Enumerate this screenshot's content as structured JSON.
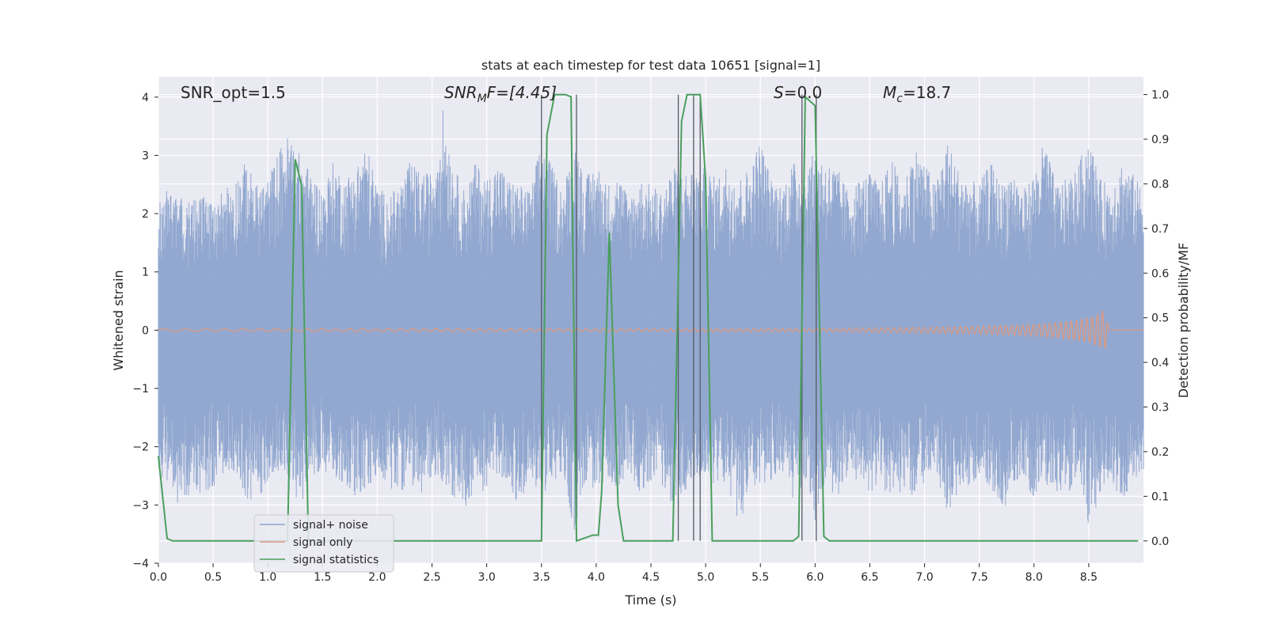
{
  "chart_data": {
    "type": "line",
    "title": "stats at each timestep for test data 10651 [signal=1]",
    "xlabel": "Time (s)",
    "ylabel": "Whitened strain",
    "y2label": "Detection probability/MF",
    "xlim": [
      0,
      9
    ],
    "ylim": [
      -4,
      4.35
    ],
    "y2lim": [
      -0.05,
      1.04
    ],
    "x_ticks": [
      0.0,
      0.5,
      1.0,
      1.5,
      2.0,
      2.5,
      3.0,
      3.5,
      4.0,
      4.5,
      5.0,
      5.5,
      6.0,
      6.5,
      7.0,
      7.5,
      8.0,
      8.5
    ],
    "x_tick_labels": [
      "0.0",
      "0.5",
      "1.0",
      "1.5",
      "2.0",
      "2.5",
      "3.0",
      "3.5",
      "4.0",
      "4.5",
      "5.0",
      "5.5",
      "6.0",
      "6.5",
      "7.0",
      "7.5",
      "8.0",
      "8.5"
    ],
    "y_ticks": [
      -4,
      -3,
      -2,
      -1,
      0,
      1,
      2,
      3,
      4
    ],
    "y_tick_labels": [
      "−4",
      "−3",
      "−2",
      "−1",
      "0",
      "1",
      "2",
      "3",
      "4"
    ],
    "y2_ticks": [
      0.0,
      0.1,
      0.2,
      0.3,
      0.4,
      0.5,
      0.6,
      0.7,
      0.8,
      0.9,
      1.0
    ],
    "y2_tick_labels": [
      "0.0",
      "0.1",
      "0.2",
      "0.3",
      "0.4",
      "0.5",
      "0.6",
      "0.7",
      "0.8",
      "0.9",
      "1.0"
    ],
    "grid": true,
    "legend_position": "lower-left",
    "annotations": {
      "snr_opt": "SNR_opt=1.5",
      "snr_mf_base": "SNR",
      "snr_mf_sub": "M",
      "snr_mf_rest": "F=[4.45]",
      "s_italic": "S",
      "s_rest": "=0.0",
      "mc_base": "M",
      "mc_sub": "c",
      "mc_rest": "=18.7"
    },
    "noise_envelope": {
      "x": [
        0.0,
        0.1,
        0.2,
        0.3,
        0.4,
        0.5,
        0.6,
        0.7,
        0.8,
        0.9,
        1.0,
        1.1,
        1.2,
        1.3,
        1.4,
        1.5,
        1.6,
        1.7,
        1.8,
        1.9,
        2.0,
        2.1,
        2.2,
        2.3,
        2.4,
        2.5,
        2.6,
        2.7,
        2.8,
        2.9,
        3.0,
        3.1,
        3.2,
        3.3,
        3.4,
        3.5,
        3.6,
        3.7,
        3.8,
        3.9,
        4.0,
        4.1,
        4.2,
        4.3,
        4.4,
        4.5,
        4.6,
        4.7,
        4.8,
        4.9,
        5.0,
        5.1,
        5.2,
        5.3,
        5.4,
        5.5,
        5.6,
        5.7,
        5.8,
        5.9,
        6.0,
        6.1,
        6.2,
        6.3,
        6.4,
        6.5,
        6.6,
        6.7,
        6.8,
        6.9,
        7.0,
        7.1,
        7.2,
        7.3,
        7.4,
        7.5,
        7.6,
        7.7,
        7.8,
        7.9,
        8.0,
        8.1,
        8.2,
        8.3,
        8.4,
        8.5,
        8.6,
        8.7,
        8.8,
        8.9,
        9.0
      ],
      "upper": [
        2.2,
        2.5,
        2.3,
        2.2,
        2.4,
        2.1,
        2.5,
        2.6,
        2.9,
        2.5,
        2.6,
        3.1,
        3.4,
        3.0,
        2.7,
        2.4,
        2.9,
        2.6,
        2.8,
        3.2,
        2.5,
        2.3,
        2.5,
        2.9,
        2.7,
        2.7,
        3.8,
        2.8,
        2.4,
        2.9,
        2.6,
        2.9,
        2.6,
        2.5,
        2.4,
        3.3,
        2.8,
        2.4,
        3.3,
        2.6,
        2.9,
        2.5,
        2.7,
        2.3,
        2.6,
        2.5,
        2.4,
        2.8,
        2.7,
        2.8,
        2.8,
        2.6,
        2.9,
        2.6,
        2.8,
        3.3,
        2.6,
        2.5,
        2.9,
        2.7,
        3.1,
        2.9,
        2.8,
        2.4,
        2.6,
        2.7,
        2.5,
        3.0,
        2.4,
        3.2,
        2.9,
        2.5,
        3.3,
        2.8,
        2.6,
        2.5,
        2.9,
        2.5,
        2.8,
        2.4,
        2.7,
        3.3,
        2.5,
        2.6,
        2.8,
        3.4,
        2.6,
        2.5,
        2.9,
        2.7,
        2.4
      ],
      "lower": [
        -2.5,
        -2.6,
        -3.1,
        -2.8,
        -2.9,
        -2.7,
        -2.5,
        -2.4,
        -2.9,
        -3.0,
        -2.6,
        -2.4,
        -2.8,
        -3.0,
        -2.5,
        -2.4,
        -2.7,
        -2.6,
        -2.9,
        -2.8,
        -2.5,
        -2.7,
        -2.8,
        -2.6,
        -2.9,
        -2.5,
        -2.6,
        -2.9,
        -3.1,
        -2.7,
        -2.8,
        -2.5,
        -2.6,
        -3.1,
        -2.6,
        -2.8,
        -2.7,
        -2.5,
        -3.5,
        -2.6,
        -2.8,
        -2.6,
        -2.7,
        -2.4,
        -2.8,
        -2.6,
        -2.7,
        -3.0,
        -2.8,
        -2.6,
        -2.7,
        -2.6,
        -2.7,
        -3.4,
        -2.8,
        -2.8,
        -2.6,
        -2.4,
        -3.0,
        -2.6,
        -3.3,
        -2.7,
        -2.9,
        -2.5,
        -2.6,
        -2.8,
        -2.6,
        -3.1,
        -2.7,
        -2.9,
        -2.6,
        -2.4,
        -3.2,
        -2.9,
        -2.7,
        -2.5,
        -2.8,
        -3.3,
        -2.6,
        -2.6,
        -2.9,
        -2.6,
        -2.9,
        -2.8,
        -2.7,
        -3.4,
        -2.9,
        -2.5,
        -3.0,
        -2.6,
        -2.4
      ]
    },
    "series": [
      {
        "name": "signal+ noise",
        "color": "#8da4cd"
      },
      {
        "name": "signal only",
        "color": "#dd9a80",
        "x": [
          0.0,
          6.0,
          7.0,
          7.5,
          8.0,
          8.2,
          8.4,
          8.5,
          8.55,
          8.6,
          8.64,
          8.66,
          8.68,
          9.0
        ],
        "amplitude": [
          0.02,
          0.03,
          0.05,
          0.07,
          0.1,
          0.13,
          0.18,
          0.22,
          0.25,
          0.3,
          0.35,
          0.3,
          0.0,
          0.0
        ]
      },
      {
        "name": "signal statistics",
        "color": "#4a9f5c",
        "axis": "right",
        "x": [
          0.0,
          0.08,
          0.13,
          1.18,
          1.25,
          1.31,
          1.37,
          3.5,
          3.55,
          3.62,
          3.72,
          3.77,
          3.82,
          3.97,
          4.02,
          4.05,
          4.12,
          4.2,
          4.25,
          4.7,
          4.78,
          4.83,
          4.95,
          5.0,
          5.06,
          5.8,
          5.85,
          5.91,
          6.0,
          6.08,
          6.13,
          8.95
        ],
        "y": [
          0.19,
          0.005,
          0.0,
          0.0,
          0.855,
          0.795,
          0.0,
          0.0,
          0.91,
          1.0,
          1.0,
          0.995,
          0.0,
          0.013,
          0.013,
          0.11,
          0.69,
          0.08,
          0.0,
          0.0,
          0.94,
          1.0,
          1.0,
          0.81,
          0.0,
          0.0,
          0.01,
          0.995,
          0.975,
          0.01,
          0.0,
          0.0
        ]
      }
    ],
    "vertical_lines": [
      3.5,
      3.82,
      4.75,
      4.89,
      4.95,
      5.88,
      6.01
    ]
  }
}
